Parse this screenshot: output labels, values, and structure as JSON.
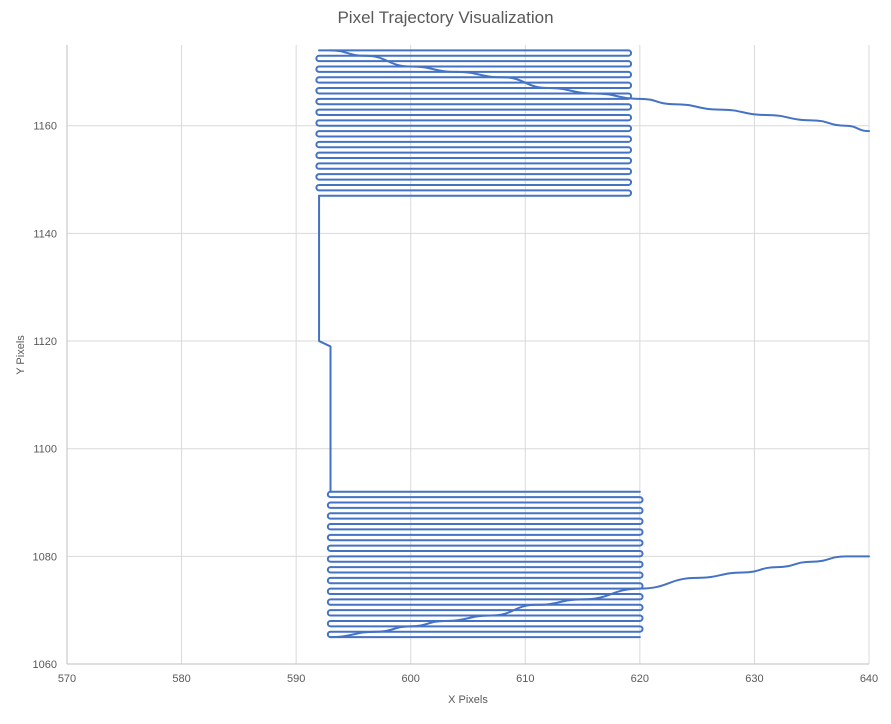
{
  "chart_data": {
    "type": "line",
    "title": "Pixel Trajectory Visualization",
    "xlabel": "X Pixels",
    "ylabel": "Y Pixels",
    "xlim": [
      570,
      640
    ],
    "ylim": [
      1060,
      1175
    ],
    "x_ticks": [
      570,
      580,
      590,
      600,
      610,
      620,
      630,
      640
    ],
    "y_ticks": [
      1060,
      1080,
      1100,
      1120,
      1140,
      1160
    ],
    "grid": true,
    "legend": "none",
    "line_color": "#4472c4",
    "series": [
      {
        "name": "",
        "segments": [
          {
            "kind": "raster",
            "x_left": 593,
            "x_right": 620,
            "y_start": 1065,
            "y_end": 1092,
            "row_spacing": 1,
            "start_side": "right"
          },
          {
            "kind": "path",
            "points": [
              [
                593,
                1092
              ],
              [
                593,
                1119
              ],
              [
                592,
                1120
              ],
              [
                592,
                1147
              ]
            ]
          },
          {
            "kind": "raster",
            "x_left": 592,
            "x_right": 619,
            "y_start": 1147,
            "y_end": 1174,
            "row_spacing": 1,
            "start_side": "left"
          },
          {
            "kind": "wave",
            "points": [
              [
                593,
                1065
              ],
              [
                597,
                1066
              ],
              [
                600,
                1067
              ],
              [
                603,
                1068
              ],
              [
                607,
                1069
              ],
              [
                611,
                1071
              ],
              [
                615,
                1072
              ],
              [
                620,
                1074
              ],
              [
                625,
                1076
              ],
              [
                629,
                1077
              ],
              [
                632,
                1078
              ],
              [
                635,
                1079
              ],
              [
                638,
                1080
              ],
              [
                640,
                1080
              ]
            ]
          },
          {
            "kind": "wave",
            "points": [
              [
                593,
                1174
              ],
              [
                596,
                1173
              ],
              [
                600,
                1171
              ],
              [
                604,
                1170
              ],
              [
                608,
                1169
              ],
              [
                612,
                1167
              ],
              [
                616,
                1166
              ],
              [
                620,
                1165
              ],
              [
                623,
                1164
              ],
              [
                627,
                1163
              ],
              [
                631,
                1162
              ],
              [
                635,
                1161
              ],
              [
                638,
                1160
              ],
              [
                640,
                1159
              ]
            ]
          }
        ]
      }
    ]
  }
}
